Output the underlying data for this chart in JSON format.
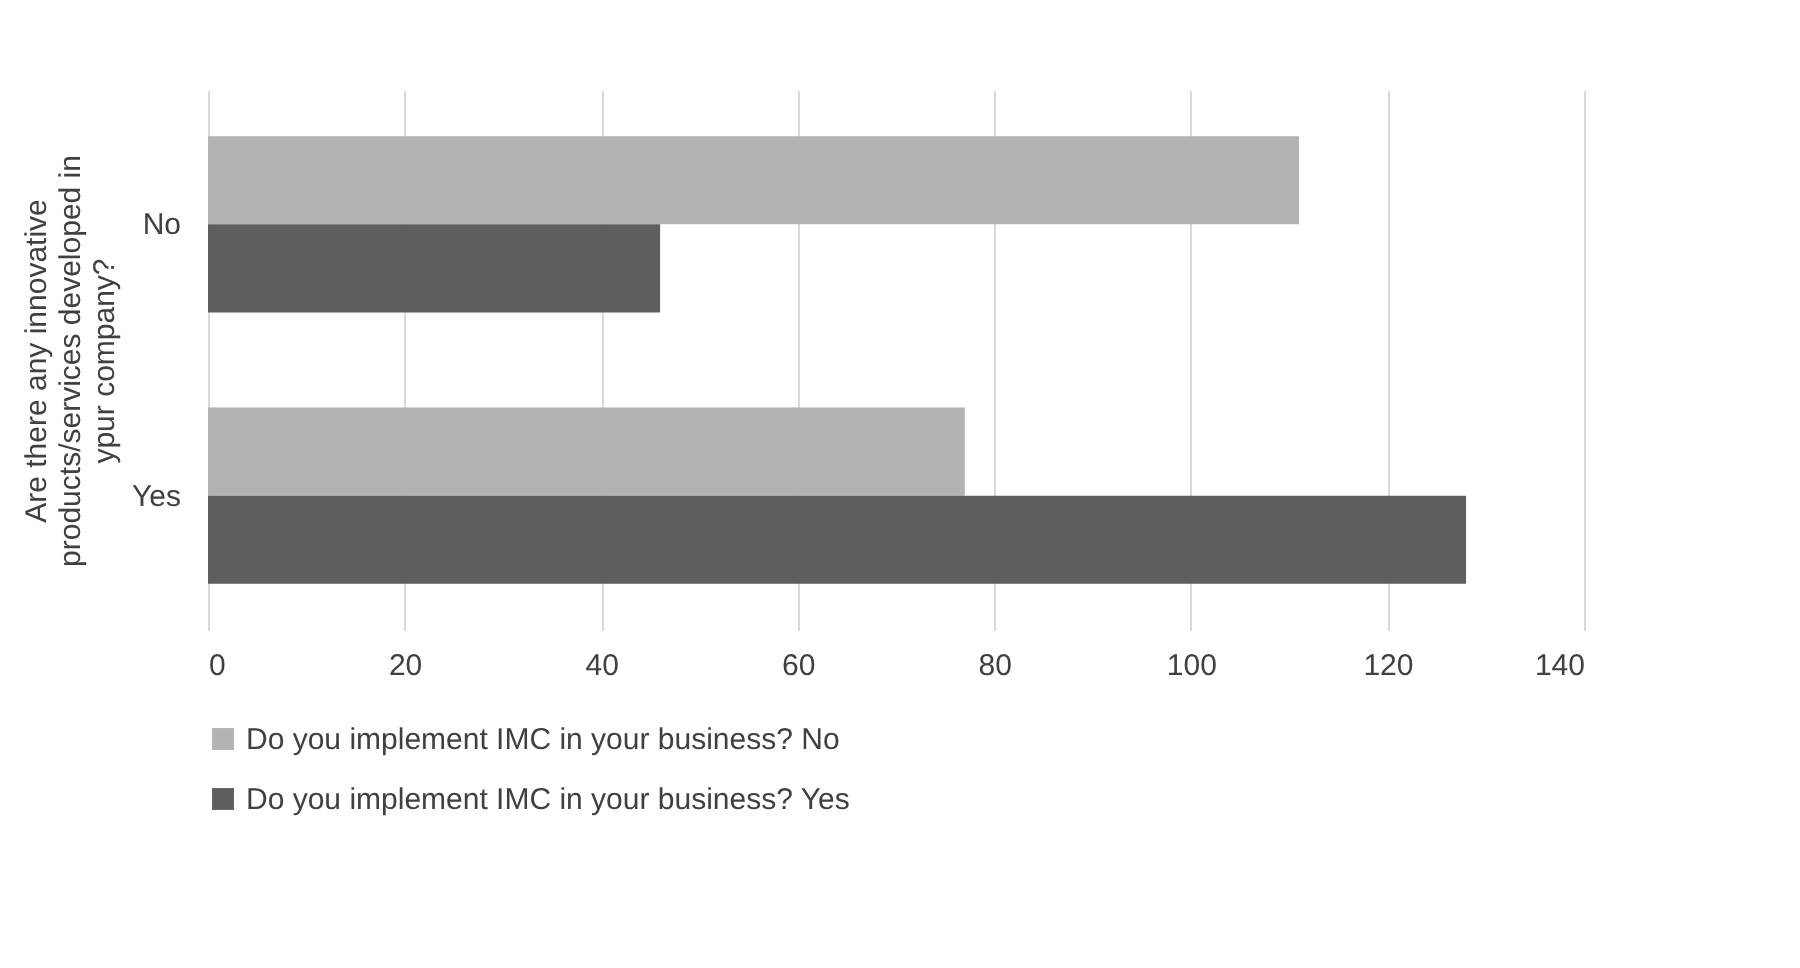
{
  "chart_data": {
    "type": "bar",
    "orientation": "horizontal",
    "ylabel": "Are there any innovative products/services developed in ypur company?",
    "categories": [
      "No",
      "Yes"
    ],
    "series": [
      {
        "name": "Do you implement IMC in your business? No",
        "color": "#b3b3b3",
        "values": [
          111,
          77
        ]
      },
      {
        "name": "Do you implement IMC in your business? Yes",
        "color": "#5f5f5f",
        "values": [
          46,
          128
        ]
      }
    ],
    "xlim": [
      0,
      140
    ],
    "xticks": [
      0,
      20,
      40,
      60,
      80,
      100,
      120,
      140
    ],
    "grid": "x",
    "legend": "bottom"
  }
}
